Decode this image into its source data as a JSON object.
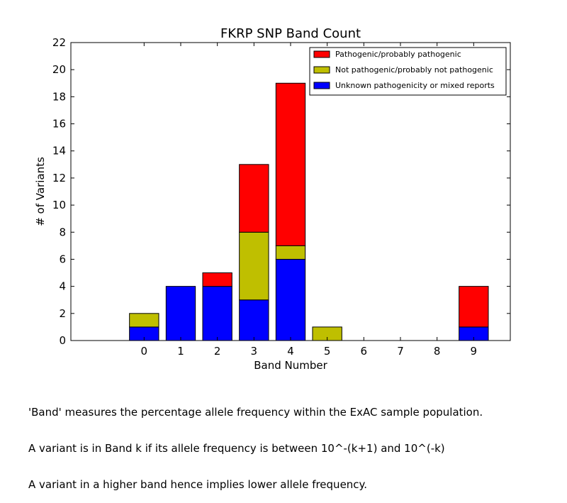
{
  "chart_data": {
    "type": "bar",
    "stacked": true,
    "title": "FKRP SNP Band Count",
    "xlabel": "Band Number",
    "ylabel": "# of Variants",
    "categories": [
      "0",
      "1",
      "2",
      "3",
      "4",
      "5",
      "6",
      "7",
      "8",
      "9"
    ],
    "xlim": [
      -2,
      10
    ],
    "ylim": [
      0,
      22
    ],
    "yticks": [
      0,
      2,
      4,
      6,
      8,
      10,
      12,
      14,
      16,
      18,
      20,
      22
    ],
    "grid": false,
    "legend_position": "top-right",
    "series": [
      {
        "name": "Unknown pathogenicity or mixed reports",
        "color": "#0000ff",
        "values": [
          1,
          4,
          4,
          3,
          6,
          0,
          0,
          0,
          0,
          1
        ]
      },
      {
        "name": "Not pathogenic/probably not pathogenic",
        "color": "#bfbf00",
        "values": [
          1,
          0,
          0,
          5,
          1,
          1,
          0,
          0,
          0,
          0
        ]
      },
      {
        "name": "Pathogenic/probably pathogenic",
        "color": "#ff0000",
        "values": [
          0,
          0,
          1,
          5,
          12,
          0,
          0,
          0,
          0,
          3
        ]
      }
    ],
    "legend_order": [
      2,
      1,
      0
    ]
  },
  "caption": [
    "'Band' measures the percentage allele frequency within the ExAC sample population.",
    "A variant is in Band k if its allele frequency is between 10^-(k+1) and 10^(-k)",
    "A variant in a higher band hence implies lower allele frequency."
  ]
}
